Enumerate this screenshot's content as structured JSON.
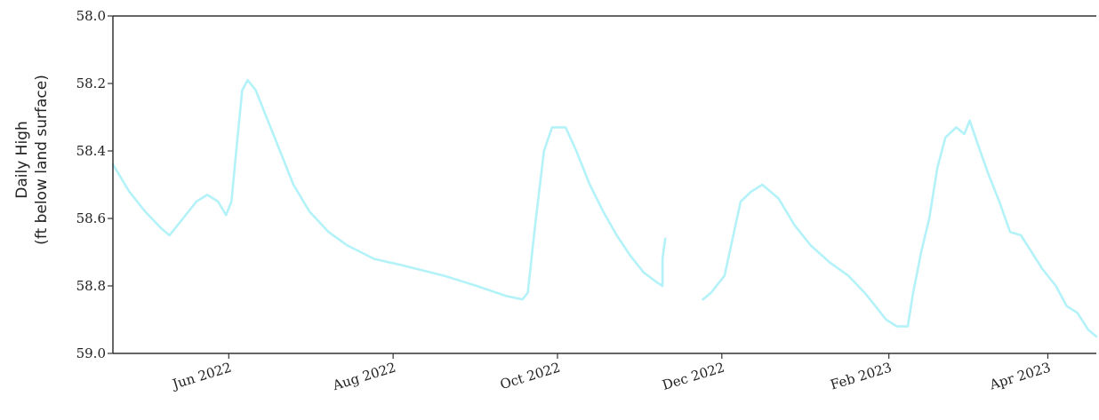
{
  "chart_data": {
    "type": "line",
    "title": "",
    "xlabel": "",
    "ylabel": [
      "Daily High",
      "(ft below land surface)"
    ],
    "y_inverted": true,
    "ylim": [
      58.0,
      59.0
    ],
    "yticks": [
      {
        "value": 58.0,
        "label": "58.0"
      },
      {
        "value": 58.2,
        "label": "58.2"
      },
      {
        "value": 58.4,
        "label": "58.4"
      },
      {
        "value": 58.6,
        "label": "58.6"
      },
      {
        "value": 58.8,
        "label": "58.8"
      },
      {
        "value": 59.0,
        "label": "59.0"
      }
    ],
    "xlim": [
      "2022-04-19",
      "2023-04-19"
    ],
    "xticks": [
      {
        "value": "2022-06-01",
        "label": "Jun 2022"
      },
      {
        "value": "2022-08-01",
        "label": "Aug 2022"
      },
      {
        "value": "2022-10-01",
        "label": "Oct 2022"
      },
      {
        "value": "2022-12-01",
        "label": "Dec 2022"
      },
      {
        "value": "2023-02-01",
        "label": "Feb 2023"
      },
      {
        "value": "2023-04-01",
        "label": "Apr 2023"
      }
    ],
    "grid": false,
    "line_color": "#b3f2f8",
    "series": [
      {
        "segments": [
          [
            [
              "2022-04-19",
              58.44
            ],
            [
              "2022-04-25",
              58.52
            ],
            [
              "2022-05-01",
              58.58
            ],
            [
              "2022-05-07",
              58.63
            ],
            [
              "2022-05-10",
              58.65
            ],
            [
              "2022-05-15",
              58.6
            ],
            [
              "2022-05-20",
              58.55
            ],
            [
              "2022-05-24",
              58.53
            ],
            [
              "2022-05-28",
              58.55
            ],
            [
              "2022-05-31",
              58.59
            ],
            [
              "2022-06-02",
              58.55
            ],
            [
              "2022-06-04",
              58.38
            ],
            [
              "2022-06-06",
              58.22
            ],
            [
              "2022-06-08",
              58.19
            ],
            [
              "2022-06-11",
              58.22
            ],
            [
              "2022-06-15",
              58.3
            ],
            [
              "2022-06-20",
              58.4
            ],
            [
              "2022-06-25",
              58.5
            ],
            [
              "2022-07-01",
              58.58
            ],
            [
              "2022-07-08",
              58.64
            ],
            [
              "2022-07-15",
              58.68
            ],
            [
              "2022-07-25",
              58.72
            ],
            [
              "2022-08-05",
              58.74
            ],
            [
              "2022-08-20",
              58.77
            ],
            [
              "2022-09-01",
              58.8
            ],
            [
              "2022-09-12",
              58.83
            ],
            [
              "2022-09-18",
              58.84
            ],
            [
              "2022-09-20",
              58.82
            ],
            [
              "2022-09-23",
              58.6
            ],
            [
              "2022-09-26",
              58.4
            ],
            [
              "2022-09-29",
              58.33
            ],
            [
              "2022-10-04",
              58.33
            ],
            [
              "2022-10-08",
              58.4
            ],
            [
              "2022-10-13",
              58.5
            ],
            [
              "2022-10-18",
              58.58
            ],
            [
              "2022-10-23",
              58.65
            ],
            [
              "2022-10-28",
              58.71
            ],
            [
              "2022-11-02",
              58.76
            ],
            [
              "2022-11-07",
              58.79
            ],
            [
              "2022-11-09",
              58.8
            ],
            [
              "2022-11-09",
              58.72
            ],
            [
              "2022-11-10",
              58.66
            ]
          ],
          [
            [
              "2022-11-24",
              58.84
            ],
            [
              "2022-11-27",
              58.82
            ],
            [
              "2022-12-02",
              58.77
            ],
            [
              "2022-12-05",
              58.66
            ],
            [
              "2022-12-08",
              58.55
            ],
            [
              "2022-12-12",
              58.52
            ],
            [
              "2022-12-16",
              58.5
            ],
            [
              "2022-12-22",
              58.54
            ],
            [
              "2022-12-28",
              58.62
            ],
            [
              "2023-01-03",
              58.68
            ],
            [
              "2023-01-10",
              58.73
            ],
            [
              "2023-01-17",
              58.77
            ],
            [
              "2023-01-23",
              58.82
            ],
            [
              "2023-01-28",
              58.87
            ],
            [
              "2023-01-31",
              58.9
            ],
            [
              "2023-02-04",
              58.92
            ],
            [
              "2023-02-08",
              58.92
            ],
            [
              "2023-02-10",
              58.82
            ],
            [
              "2023-02-13",
              58.7
            ],
            [
              "2023-02-16",
              58.6
            ],
            [
              "2023-02-19",
              58.45
            ],
            [
              "2023-02-22",
              58.36
            ],
            [
              "2023-02-26",
              58.33
            ],
            [
              "2023-03-01",
              58.35
            ],
            [
              "2023-03-03",
              58.31
            ],
            [
              "2023-03-06",
              58.38
            ],
            [
              "2023-03-10",
              58.47
            ],
            [
              "2023-03-14",
              58.55
            ],
            [
              "2023-03-18",
              58.64
            ],
            [
              "2023-03-22",
              58.65
            ],
            [
              "2023-03-26",
              58.7
            ],
            [
              "2023-03-30",
              58.75
            ],
            [
              "2023-04-04",
              58.8
            ],
            [
              "2023-04-08",
              58.86
            ],
            [
              "2023-04-12",
              58.88
            ],
            [
              "2023-04-16",
              58.93
            ],
            [
              "2023-04-19",
              58.95
            ]
          ]
        ]
      }
    ]
  }
}
